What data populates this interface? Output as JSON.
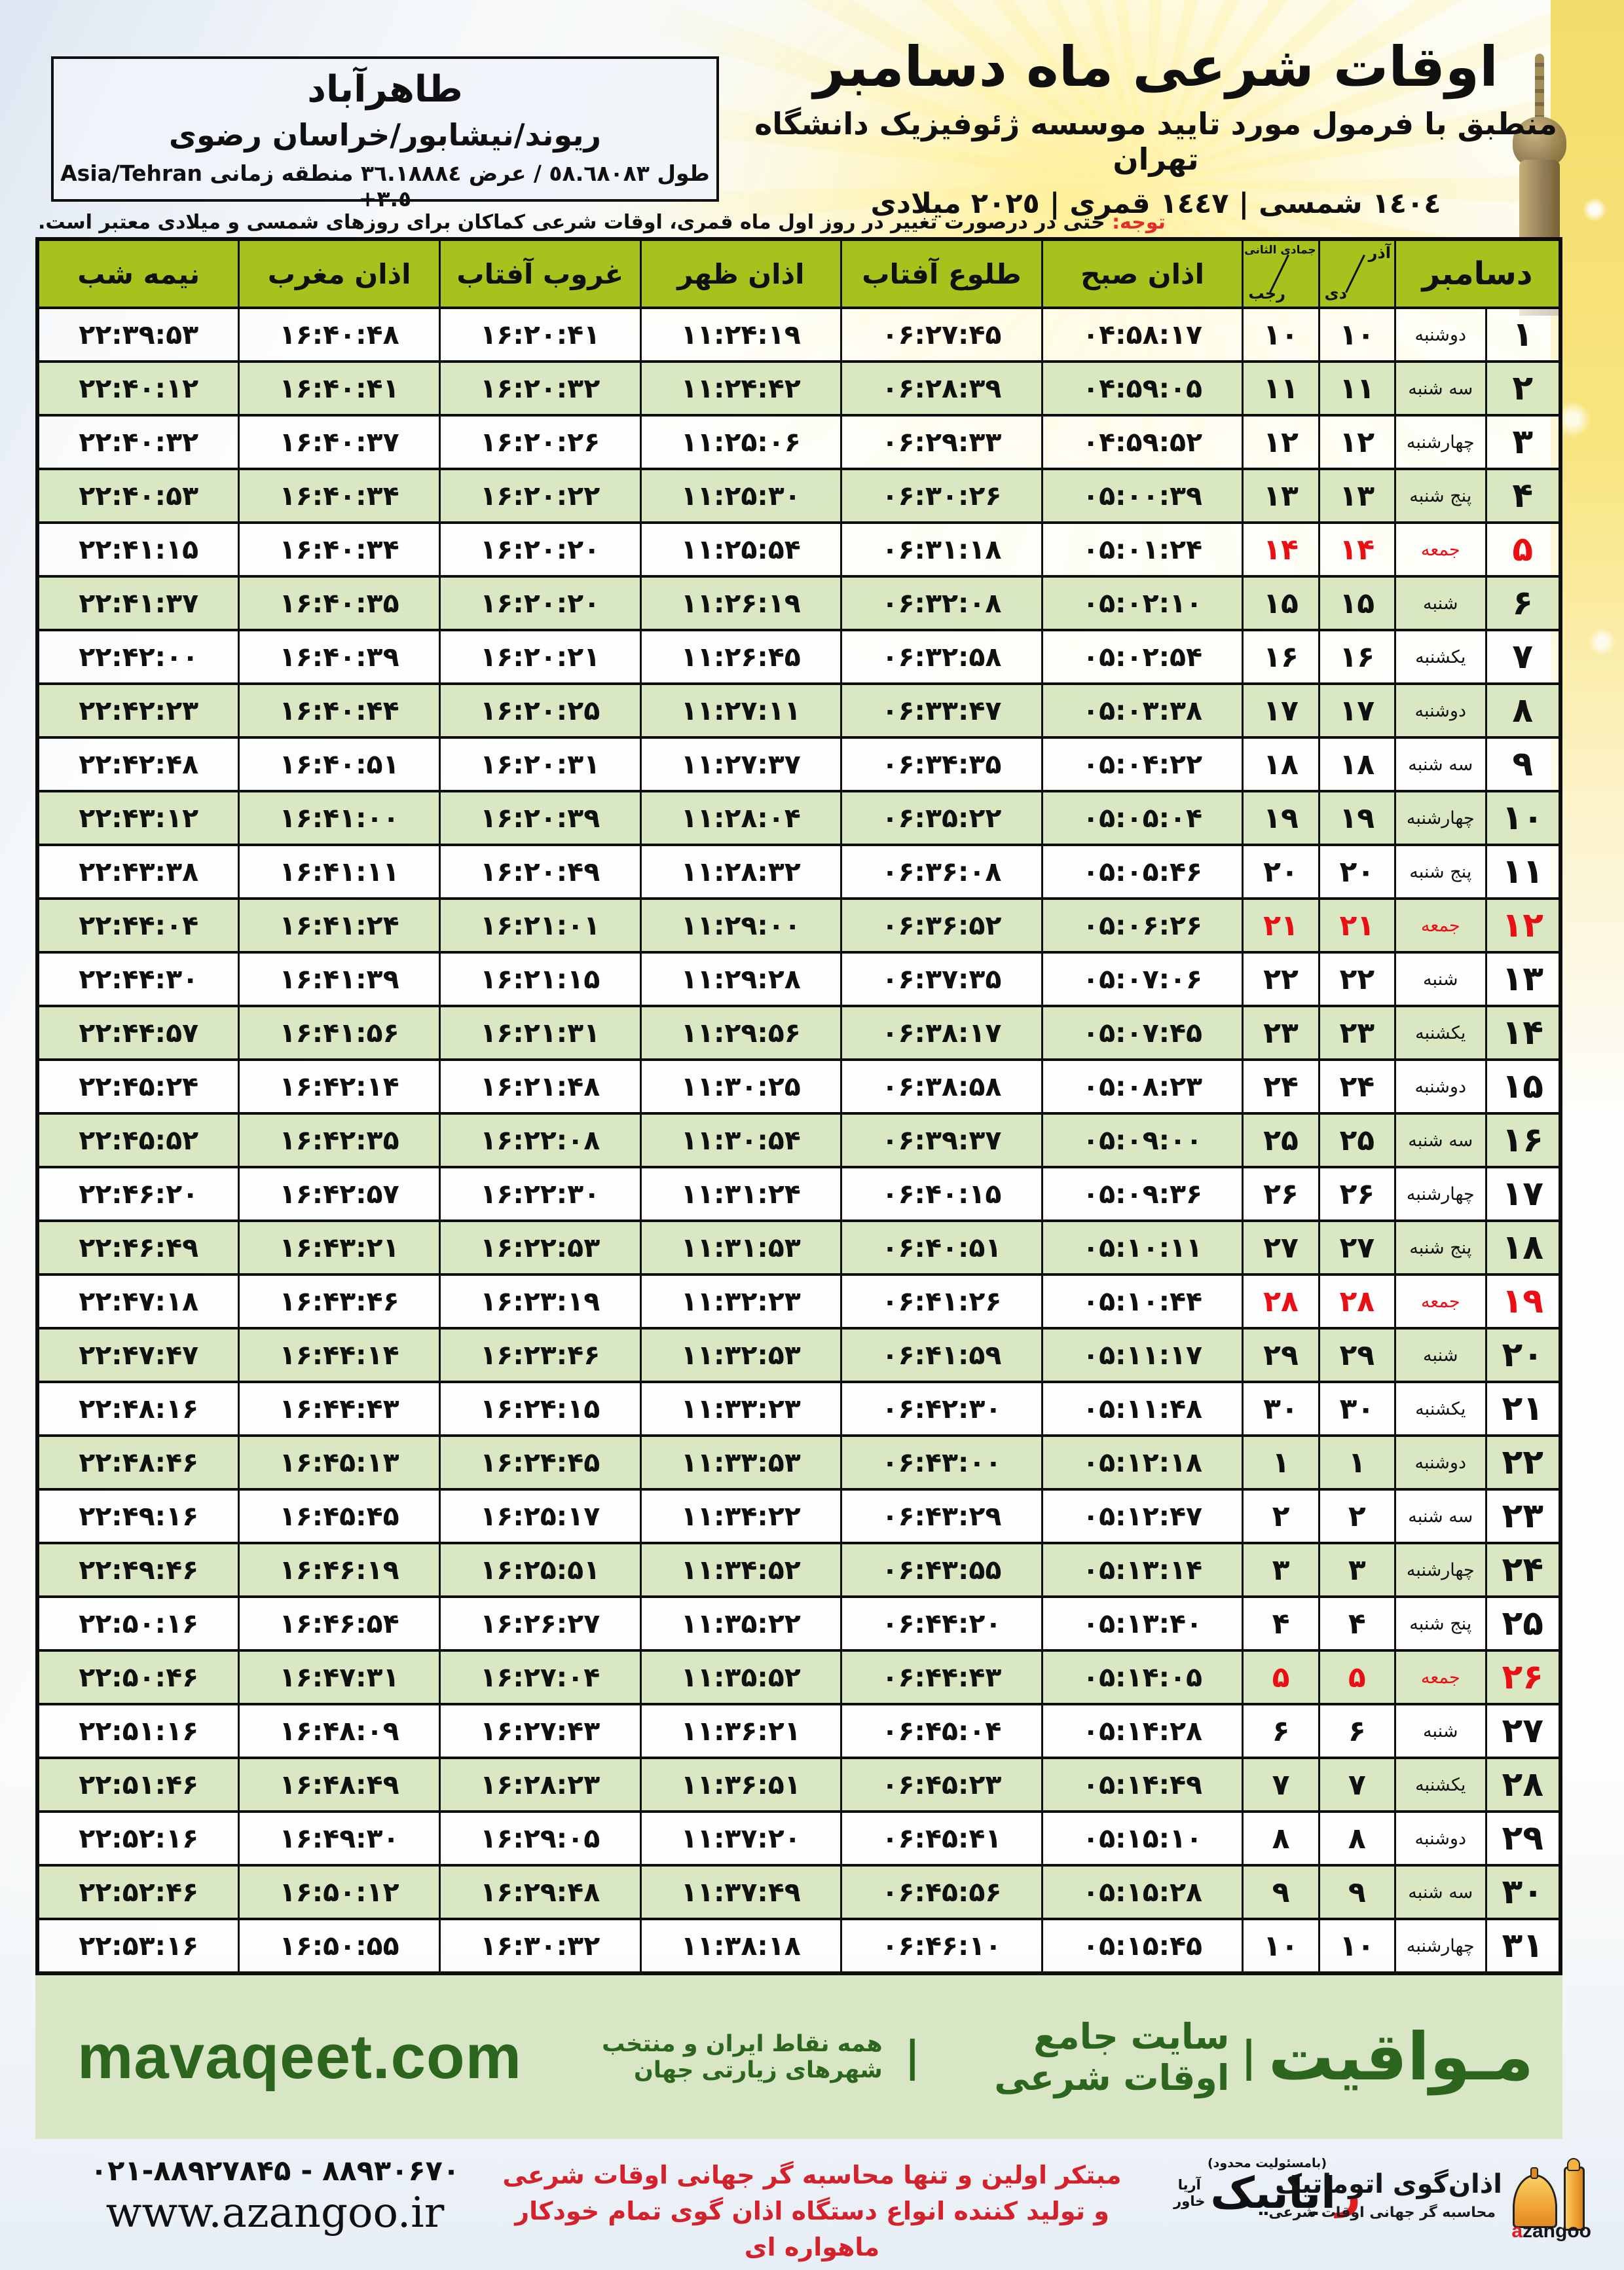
{
  "title": {
    "main": "اوقات شرعی ماه دسامبر",
    "subtitle": "منطبق با فرمول مورد تایید موسسه ژئوفیزیک دانشگاه تهران",
    "years": "١٤٠٤ شمسی | ١٤٤٧ قمری | ٢٠٢٥ میلادی"
  },
  "location": {
    "city": "طاهرآباد",
    "region": "ریوند/نیشابور/خراسان رضوی",
    "coords": "طول ٥٨.٦٨٠٨٣ / عرض ٣٦.١٨٨٨٤ منطقه زمانی",
    "timezone": "Asia/Tehran +٣.٥"
  },
  "note": {
    "label": "توجه:",
    "text": " حتی در درصورت تغییر در روز اول ماه قمری، اوقات شرعی کماکان برای روزهای شمسی و میلادی معتبر است."
  },
  "table": {
    "month_header": "دسامبر",
    "jalali_header": {
      "top": "آذر",
      "bottom": "دی"
    },
    "hijri_header": {
      "top": "جمادی الثانی",
      "bottom": "رجب"
    },
    "time_headers": {
      "fajr": "اذان صبح",
      "sunrise": "طلوع آفتاب",
      "dhuhr": "اذان ظهر",
      "sunset": "غروب آفتاب",
      "maghrib": "اذان مغرب",
      "midnight": "نیمه شب"
    },
    "rows": [
      {
        "day": 1,
        "weekday": "دوشنبه",
        "jalali": 10,
        "hijri": 10,
        "fajr": "04:58:17",
        "sunrise": "06:27:45",
        "dhuhr": "11:24:19",
        "sunset": "16:20:41",
        "maghrib": "16:40:48",
        "midnight": "22:39:53",
        "friday": false
      },
      {
        "day": 2,
        "weekday": "سه شنبه",
        "jalali": 11,
        "hijri": 11,
        "fajr": "04:59:05",
        "sunrise": "06:28:39",
        "dhuhr": "11:24:42",
        "sunset": "16:20:32",
        "maghrib": "16:40:41",
        "midnight": "22:40:12",
        "friday": false
      },
      {
        "day": 3,
        "weekday": "چهارشنبه",
        "jalali": 12,
        "hijri": 12,
        "fajr": "04:59:52",
        "sunrise": "06:29:33",
        "dhuhr": "11:25:06",
        "sunset": "16:20:26",
        "maghrib": "16:40:37",
        "midnight": "22:40:32",
        "friday": false
      },
      {
        "day": 4,
        "weekday": "پنج شنبه",
        "jalali": 13,
        "hijri": 13,
        "fajr": "05:00:39",
        "sunrise": "06:30:26",
        "dhuhr": "11:25:30",
        "sunset": "16:20:22",
        "maghrib": "16:40:34",
        "midnight": "22:40:53",
        "friday": false
      },
      {
        "day": 5,
        "weekday": "جمعه",
        "jalali": 14,
        "hijri": 14,
        "fajr": "05:01:24",
        "sunrise": "06:31:18",
        "dhuhr": "11:25:54",
        "sunset": "16:20:20",
        "maghrib": "16:40:34",
        "midnight": "22:41:15",
        "friday": true
      },
      {
        "day": 6,
        "weekday": "شنبه",
        "jalali": 15,
        "hijri": 15,
        "fajr": "05:02:10",
        "sunrise": "06:32:08",
        "dhuhr": "11:26:19",
        "sunset": "16:20:20",
        "maghrib": "16:40:35",
        "midnight": "22:41:37",
        "friday": false
      },
      {
        "day": 7,
        "weekday": "یکشنبه",
        "jalali": 16,
        "hijri": 16,
        "fajr": "05:02:54",
        "sunrise": "06:32:58",
        "dhuhr": "11:26:45",
        "sunset": "16:20:21",
        "maghrib": "16:40:39",
        "midnight": "22:42:00",
        "friday": false
      },
      {
        "day": 8,
        "weekday": "دوشنبه",
        "jalali": 17,
        "hijri": 17,
        "fajr": "05:03:38",
        "sunrise": "06:33:47",
        "dhuhr": "11:27:11",
        "sunset": "16:20:25",
        "maghrib": "16:40:44",
        "midnight": "22:42:23",
        "friday": false
      },
      {
        "day": 9,
        "weekday": "سه شنبه",
        "jalali": 18,
        "hijri": 18,
        "fajr": "05:04:22",
        "sunrise": "06:34:35",
        "dhuhr": "11:27:37",
        "sunset": "16:20:31",
        "maghrib": "16:40:51",
        "midnight": "22:42:48",
        "friday": false
      },
      {
        "day": 10,
        "weekday": "چهارشنبه",
        "jalali": 19,
        "hijri": 19,
        "fajr": "05:05:04",
        "sunrise": "06:35:22",
        "dhuhr": "11:28:04",
        "sunset": "16:20:39",
        "maghrib": "16:41:00",
        "midnight": "22:43:12",
        "friday": false
      },
      {
        "day": 11,
        "weekday": "پنج شنبه",
        "jalali": 20,
        "hijri": 20,
        "fajr": "05:05:46",
        "sunrise": "06:36:08",
        "dhuhr": "11:28:32",
        "sunset": "16:20:49",
        "maghrib": "16:41:11",
        "midnight": "22:43:38",
        "friday": false
      },
      {
        "day": 12,
        "weekday": "جمعه",
        "jalali": 21,
        "hijri": 21,
        "fajr": "05:06:26",
        "sunrise": "06:36:52",
        "dhuhr": "11:29:00",
        "sunset": "16:21:01",
        "maghrib": "16:41:24",
        "midnight": "22:44:04",
        "friday": true
      },
      {
        "day": 13,
        "weekday": "شنبه",
        "jalali": 22,
        "hijri": 22,
        "fajr": "05:07:06",
        "sunrise": "06:37:35",
        "dhuhr": "11:29:28",
        "sunset": "16:21:15",
        "maghrib": "16:41:39",
        "midnight": "22:44:30",
        "friday": false
      },
      {
        "day": 14,
        "weekday": "یکشنبه",
        "jalali": 23,
        "hijri": 23,
        "fajr": "05:07:45",
        "sunrise": "06:38:17",
        "dhuhr": "11:29:56",
        "sunset": "16:21:31",
        "maghrib": "16:41:56",
        "midnight": "22:44:57",
        "friday": false
      },
      {
        "day": 15,
        "weekday": "دوشنبه",
        "jalali": 24,
        "hijri": 24,
        "fajr": "05:08:23",
        "sunrise": "06:38:58",
        "dhuhr": "11:30:25",
        "sunset": "16:21:48",
        "maghrib": "16:42:14",
        "midnight": "22:45:24",
        "friday": false
      },
      {
        "day": 16,
        "weekday": "سه شنبه",
        "jalali": 25,
        "hijri": 25,
        "fajr": "05:09:00",
        "sunrise": "06:39:37",
        "dhuhr": "11:30:54",
        "sunset": "16:22:08",
        "maghrib": "16:42:35",
        "midnight": "22:45:52",
        "friday": false
      },
      {
        "day": 17,
        "weekday": "چهارشنبه",
        "jalali": 26,
        "hijri": 26,
        "fajr": "05:09:36",
        "sunrise": "06:40:15",
        "dhuhr": "11:31:24",
        "sunset": "16:22:30",
        "maghrib": "16:42:57",
        "midnight": "22:46:20",
        "friday": false
      },
      {
        "day": 18,
        "weekday": "پنج شنبه",
        "jalali": 27,
        "hijri": 27,
        "fajr": "05:10:11",
        "sunrise": "06:40:51",
        "dhuhr": "11:31:53",
        "sunset": "16:22:53",
        "maghrib": "16:43:21",
        "midnight": "22:46:49",
        "friday": false
      },
      {
        "day": 19,
        "weekday": "جمعه",
        "jalali": 28,
        "hijri": 28,
        "fajr": "05:10:44",
        "sunrise": "06:41:26",
        "dhuhr": "11:32:23",
        "sunset": "16:23:19",
        "maghrib": "16:43:46",
        "midnight": "22:47:18",
        "friday": true
      },
      {
        "day": 20,
        "weekday": "شنبه",
        "jalali": 29,
        "hijri": 29,
        "fajr": "05:11:17",
        "sunrise": "06:41:59",
        "dhuhr": "11:32:53",
        "sunset": "16:23:46",
        "maghrib": "16:44:14",
        "midnight": "22:47:47",
        "friday": false
      },
      {
        "day": 21,
        "weekday": "یکشنبه",
        "jalali": 30,
        "hijri": 30,
        "fajr": "05:11:48",
        "sunrise": "06:42:30",
        "dhuhr": "11:33:23",
        "sunset": "16:24:15",
        "maghrib": "16:44:43",
        "midnight": "22:48:16",
        "friday": false
      },
      {
        "day": 22,
        "weekday": "دوشنبه",
        "jalali": 1,
        "hijri": 1,
        "fajr": "05:12:18",
        "sunrise": "06:43:00",
        "dhuhr": "11:33:53",
        "sunset": "16:24:45",
        "maghrib": "16:45:13",
        "midnight": "22:48:46",
        "friday": false
      },
      {
        "day": 23,
        "weekday": "سه شنبه",
        "jalali": 2,
        "hijri": 2,
        "fajr": "05:12:47",
        "sunrise": "06:43:29",
        "dhuhr": "11:34:22",
        "sunset": "16:25:17",
        "maghrib": "16:45:45",
        "midnight": "22:49:16",
        "friday": false
      },
      {
        "day": 24,
        "weekday": "چهارشنبه",
        "jalali": 3,
        "hijri": 3,
        "fajr": "05:13:14",
        "sunrise": "06:43:55",
        "dhuhr": "11:34:52",
        "sunset": "16:25:51",
        "maghrib": "16:46:19",
        "midnight": "22:49:46",
        "friday": false
      },
      {
        "day": 25,
        "weekday": "پنج شنبه",
        "jalali": 4,
        "hijri": 4,
        "fajr": "05:13:40",
        "sunrise": "06:44:20",
        "dhuhr": "11:35:22",
        "sunset": "16:26:27",
        "maghrib": "16:46:54",
        "midnight": "22:50:16",
        "friday": false
      },
      {
        "day": 26,
        "weekday": "جمعه",
        "jalali": 5,
        "hijri": 5,
        "fajr": "05:14:05",
        "sunrise": "06:44:43",
        "dhuhr": "11:35:52",
        "sunset": "16:27:04",
        "maghrib": "16:47:31",
        "midnight": "22:50:46",
        "friday": true
      },
      {
        "day": 27,
        "weekday": "شنبه",
        "jalali": 6,
        "hijri": 6,
        "fajr": "05:14:28",
        "sunrise": "06:45:04",
        "dhuhr": "11:36:21",
        "sunset": "16:27:43",
        "maghrib": "16:48:09",
        "midnight": "22:51:16",
        "friday": false
      },
      {
        "day": 28,
        "weekday": "یکشنبه",
        "jalali": 7,
        "hijri": 7,
        "fajr": "05:14:49",
        "sunrise": "06:45:23",
        "dhuhr": "11:36:51",
        "sunset": "16:28:23",
        "maghrib": "16:48:49",
        "midnight": "22:51:46",
        "friday": false
      },
      {
        "day": 29,
        "weekday": "دوشنبه",
        "jalali": 8,
        "hijri": 8,
        "fajr": "05:15:10",
        "sunrise": "06:45:41",
        "dhuhr": "11:37:20",
        "sunset": "16:29:05",
        "maghrib": "16:49:30",
        "midnight": "22:52:16",
        "friday": false
      },
      {
        "day": 30,
        "weekday": "سه شنبه",
        "jalali": 9,
        "hijri": 9,
        "fajr": "05:15:28",
        "sunrise": "06:45:56",
        "dhuhr": "11:37:49",
        "sunset": "16:29:48",
        "maghrib": "16:50:12",
        "midnight": "22:52:46",
        "friday": false
      },
      {
        "day": 31,
        "weekday": "چهارشنبه",
        "jalali": 10,
        "hijri": 10,
        "fajr": "05:15:45",
        "sunrise": "06:46:10",
        "dhuhr": "11:38:18",
        "sunset": "16:30:32",
        "maghrib": "16:50:55",
        "midnight": "22:53:16",
        "friday": false
      }
    ]
  },
  "site_bar": {
    "url": "mavaqeet.com",
    "brand": "مـواقیت",
    "divider": "|",
    "tagline": "سایت جامع اوقات شرعی",
    "scope": "همه نقاط ایران و منتخب شهرهای زیارتی جهان"
  },
  "footer": {
    "phones": "۰۲۱-۸۸۹۲۷۸۴۵ - ۸۸۹۳۰۶۷۰",
    "website": "www.azangoo.ir",
    "red_line1": "مبتکر اولین و تنها محاسبه گر جهانی اوقات شرعی",
    "red_line2": "و تولید کننده انواع دستگاه اذان گوی تمام خودکار ماهواره ای",
    "rayanik": {
      "top": "(بامسئولیت محدود)",
      "first": "ر",
      "rest": "ایانیک",
      "side_top": "آریا",
      "side_bottom": "خاور"
    },
    "azangoo": {
      "title": "اذان‌گوی اتوماتیک",
      "subtitle": "محاسبه گر جهانی اوقات شرعی",
      "latin_a": "a",
      "latin_rest": "zangoo"
    }
  },
  "colors": {
    "header_green": "#a6c31d",
    "row_green": "#d7e7be",
    "friday_red": "#e90f15",
    "site_bar_bg": "#d8e6c5",
    "site_bar_text": "#2c661e",
    "bottom_strip": "#a9c41d"
  }
}
